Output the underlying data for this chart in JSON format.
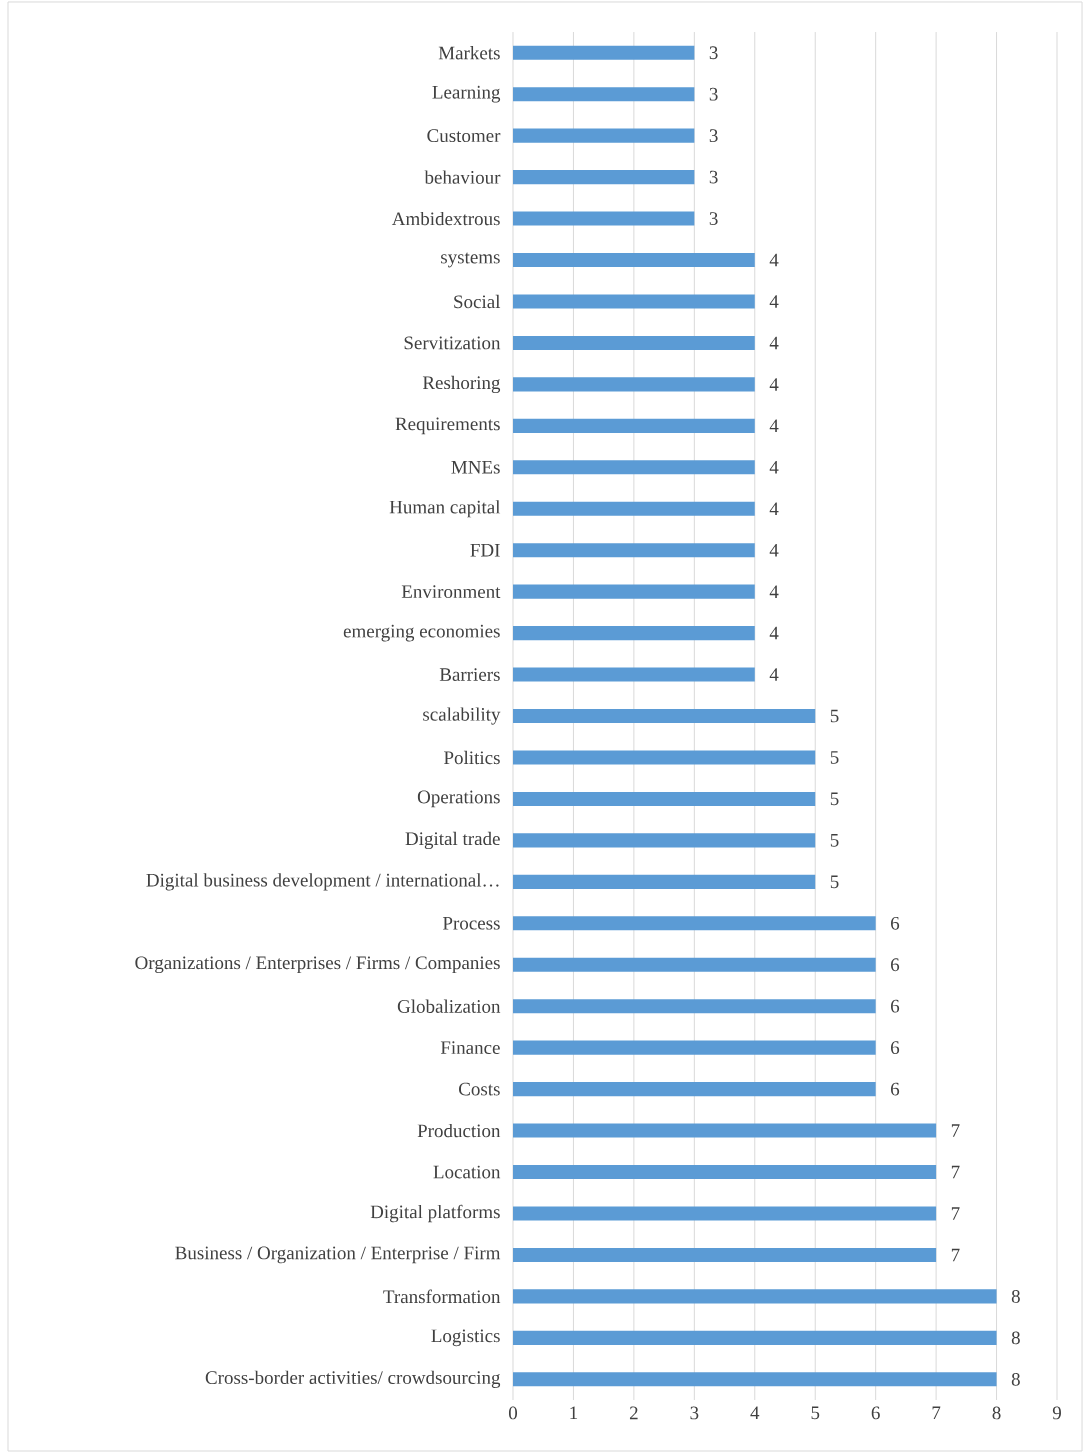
{
  "chart_data": {
    "type": "bar",
    "orientation": "horizontal",
    "categories": [
      "Markets",
      "Learning",
      "Customer",
      "behaviour",
      "Ambidextrous",
      "systems",
      "Social",
      "Servitization",
      "Reshoring",
      "Requirements",
      "MNEs",
      "Human capital",
      "FDI",
      "Environment",
      "emerging economies",
      "Barriers",
      "scalability",
      "Politics",
      "Operations",
      "Digital trade",
      "Digital business development / international…",
      "Process",
      "Organizations / Enterprises / Firms / Companies",
      "Globalization",
      "Finance",
      "Costs",
      "Production",
      "Location",
      "Digital platforms",
      "Business / Organization / Enterprise / Firm",
      "Transformation",
      "Logistics",
      "Cross-border activities/ crowdsourcing"
    ],
    "values": [
      3,
      3,
      3,
      3,
      3,
      4,
      4,
      4,
      4,
      4,
      4,
      4,
      4,
      4,
      4,
      4,
      5,
      5,
      5,
      5,
      5,
      6,
      6,
      6,
      6,
      6,
      7,
      7,
      7,
      7,
      8,
      8,
      8
    ],
    "color": "#5b9bd5",
    "xlim": [
      0,
      9
    ],
    "xticks": [
      0,
      1,
      2,
      3,
      4,
      5,
      6,
      7,
      8,
      9
    ],
    "grid": "x",
    "data_labels": true
  }
}
